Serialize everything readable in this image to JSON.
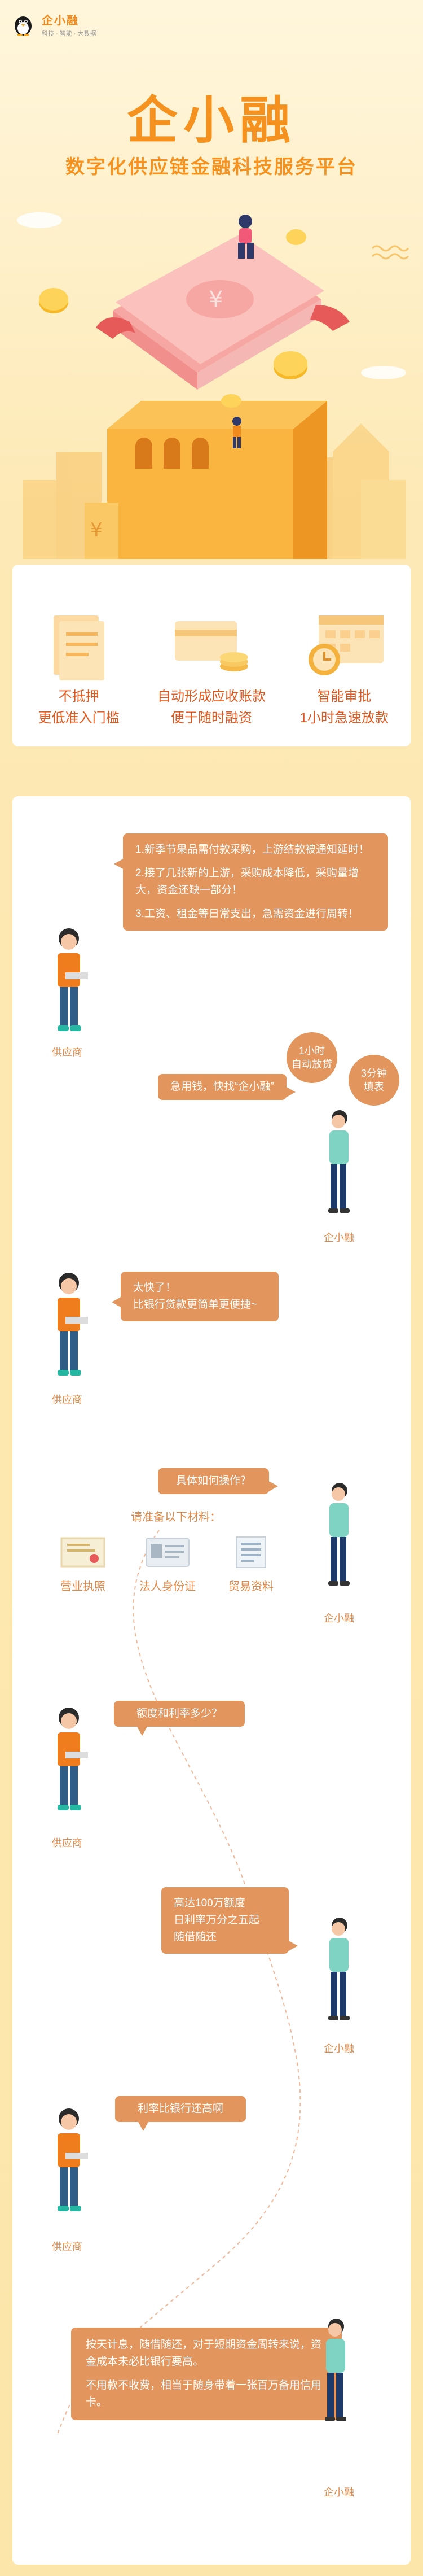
{
  "brand": {
    "name": "企小融",
    "tagline": "科技 · 智能 · 大数据"
  },
  "hero": {
    "title": "企小融",
    "subtitle": "数字化供应链金融科技服务平台"
  },
  "features": [
    {
      "line1": "不抵押",
      "line2": "更低准入门槛",
      "icon": "document-icon"
    },
    {
      "line1": "自动形成应收账款",
      "line2": "便于随时融资",
      "icon": "card-coins-icon"
    },
    {
      "line1": "智能审批",
      "line2": "1小时急速放款",
      "icon": "alarm-clock-icon"
    }
  ],
  "roles": {
    "supplier": "供应商",
    "company": "企小融"
  },
  "chat": {
    "msg1": [
      "1.新季节果品需付款采购，上游结款被通知延时！",
      "2.接了几张新的上游，采购成本降低，采购量增大，资金还缺一部分！",
      "3.工资、租金等日常支出，急需资金进行周转！"
    ],
    "badge1": [
      "1小时",
      "自动放贷"
    ],
    "badge2": [
      "3分钟",
      "填表"
    ],
    "msg2": "急用钱，快找“企小融”",
    "msg3": [
      "太快了！",
      "比银行贷款更简单更便捷~"
    ],
    "msg4": "具体如何操作？",
    "materials_title": "请准备以下材料：",
    "materials": [
      {
        "label": "营业执照",
        "icon": "license-icon"
      },
      {
        "label": "法人身份证",
        "icon": "id-card-icon"
      },
      {
        "label": "贸易资料",
        "icon": "trade-docs-icon"
      }
    ],
    "msg5": "额度和利率多少？",
    "msg6": [
      "高达100万额度",
      "日利率万分之五起",
      "随借随还"
    ],
    "msg7": "利率比银行还高啊",
    "msg8": [
      "按天计息，随借随还，对于短期资金周转来说，资金成本未必比银行要高。",
      "不用款不收费，相当于随身带着一张百万备用信用卡。"
    ]
  },
  "colors": {
    "accent": "#f5921f",
    "bubble": "#e2955c",
    "label": "#e08a4a"
  }
}
